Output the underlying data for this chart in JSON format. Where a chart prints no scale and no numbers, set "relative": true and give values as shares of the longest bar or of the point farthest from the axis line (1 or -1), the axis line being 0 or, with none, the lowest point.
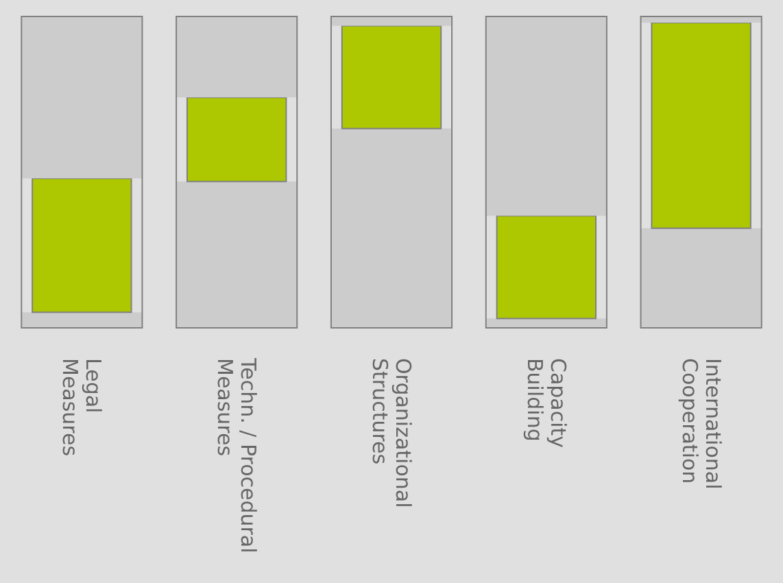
{
  "chart_data": {
    "type": "bar",
    "relative": true,
    "stacked": true,
    "categories": [
      "Legal\nMeasures",
      "Techn. / Procedural\nMeasures",
      "Organizational\nStructures",
      "Capacity\nBuilding",
      "International\nCooperation"
    ],
    "series": [
      {
        "color": "#cccccc",
        "values": [
          0.05,
          0.47,
          0.64,
          0.03,
          0.32
        ]
      },
      {
        "color": "#adc700",
        "values": [
          0.43,
          0.27,
          0.33,
          0.33,
          0.66
        ]
      },
      {
        "color": "#cccccc",
        "values": [
          0.52,
          0.26,
          0.03,
          0.64,
          0.02
        ]
      }
    ]
  }
}
